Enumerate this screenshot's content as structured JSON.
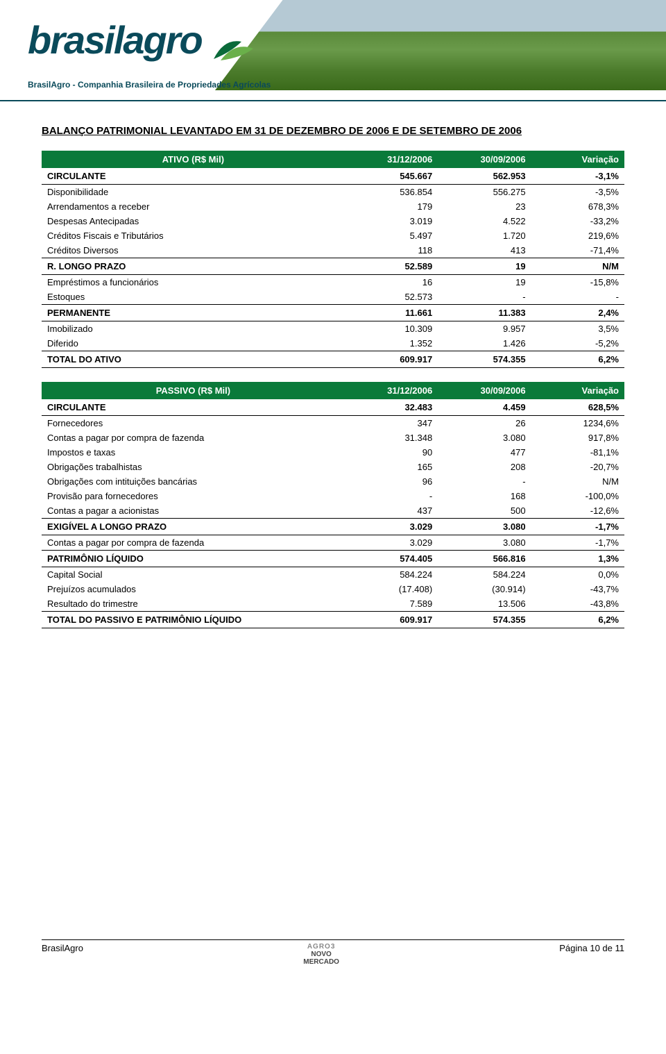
{
  "header": {
    "logo_text": "brasilagro",
    "subtitle": "BrasilAgro - Companhia Brasileira de Propriedades Agrícolas",
    "logo_color": "#0a4a5a",
    "leaf_dark": "#0a6a3a",
    "leaf_light": "#6ab04a"
  },
  "title": "BALANÇO PATRIMONIAL LEVANTADO EM 31 DE DEZEMBRO DE 2006 E DE SETEMBRO DE 2006",
  "ativo": {
    "header_bg": "#0a7a3a",
    "columns": [
      "ATIVO (R$ Mil)",
      "31/12/2006",
      "30/09/2006",
      "Variação"
    ],
    "sections": [
      {
        "row": [
          "CIRCULANTE",
          "545.667",
          "562.953",
          "-3,1%"
        ],
        "first": true,
        "items": [
          [
            "Disponibilidade",
            "536.854",
            "556.275",
            "-3,5%"
          ],
          [
            "Arrendamentos a receber",
            "179",
            "23",
            "678,3%"
          ],
          [
            "Despesas Antecipadas",
            "3.019",
            "4.522",
            "-33,2%"
          ],
          [
            "Créditos Fiscais e Tributários",
            "5.497",
            "1.720",
            "219,6%"
          ],
          [
            "Créditos Diversos",
            "118",
            "413",
            "-71,4%"
          ]
        ]
      },
      {
        "row": [
          "R. LONGO PRAZO",
          "52.589",
          "19",
          "N/M"
        ],
        "items": [
          [
            "Empréstimos a funcionários",
            "16",
            "19",
            "-15,8%"
          ],
          [
            "Estoques",
            "52.573",
            "-",
            "-"
          ]
        ]
      },
      {
        "row": [
          "PERMANENTE",
          "11.661",
          "11.383",
          "2,4%"
        ],
        "items": [
          [
            "Imobilizado",
            "10.309",
            "9.957",
            "3,5%"
          ],
          [
            "Diferido",
            "1.352",
            "1.426",
            "-5,2%"
          ]
        ]
      }
    ],
    "total": [
      "TOTAL DO ATIVO",
      "609.917",
      "574.355",
      "6,2%"
    ]
  },
  "passivo": {
    "columns": [
      "PASSIVO (R$ Mil)",
      "31/12/2006",
      "30/09/2006",
      "Variação"
    ],
    "sections": [
      {
        "row": [
          "CIRCULANTE",
          "32.483",
          "4.459",
          "628,5%"
        ],
        "first": true,
        "items": [
          [
            "Fornecedores",
            "347",
            "26",
            "1234,6%"
          ],
          [
            "Contas a pagar por compra de fazenda",
            "31.348",
            "3.080",
            "917,8%"
          ],
          [
            "Impostos e taxas",
            "90",
            "477",
            "-81,1%"
          ],
          [
            "Obrigações trabalhistas",
            "165",
            "208",
            "-20,7%"
          ],
          [
            "Obrigações com intituições bancárias",
            "96",
            "-",
            "N/M"
          ],
          [
            "Provisão para fornecedores",
            "-",
            "168",
            "-100,0%"
          ],
          [
            "Contas a pagar a acionistas",
            "437",
            "500",
            "-12,6%"
          ]
        ]
      },
      {
        "row": [
          "EXIGÍVEL A LONGO PRAZO",
          "3.029",
          "3.080",
          "-1,7%"
        ],
        "items": [
          [
            "Contas a pagar por compra de fazenda",
            "3.029",
            "3.080",
            "-1,7%"
          ]
        ]
      },
      {
        "row": [
          "PATRIMÔNIO LÍQUIDO",
          "574.405",
          "566.816",
          "1,3%"
        ],
        "items": [
          [
            "Capital Social",
            "584.224",
            "584.224",
            "0,0%"
          ],
          [
            "Prejuízos acumulados",
            "(17.408)",
            "(30.914)",
            "-43,7%"
          ],
          [
            "Resultado do trimestre",
            "7.589",
            "13.506",
            "-43,8%"
          ]
        ]
      }
    ],
    "total": [
      "TOTAL DO PASSIVO E PATRIMÔNIO LÍQUIDO",
      "609.917",
      "574.355",
      "6,2%"
    ]
  },
  "footer": {
    "left": "BrasilAgro",
    "center_line1": "AGRO3",
    "center_line2": "NOVO",
    "center_line3": "MERCADO",
    "right": "Página 10 de 11"
  },
  "col_widths": [
    "52%",
    "16%",
    "16%",
    "16%"
  ]
}
